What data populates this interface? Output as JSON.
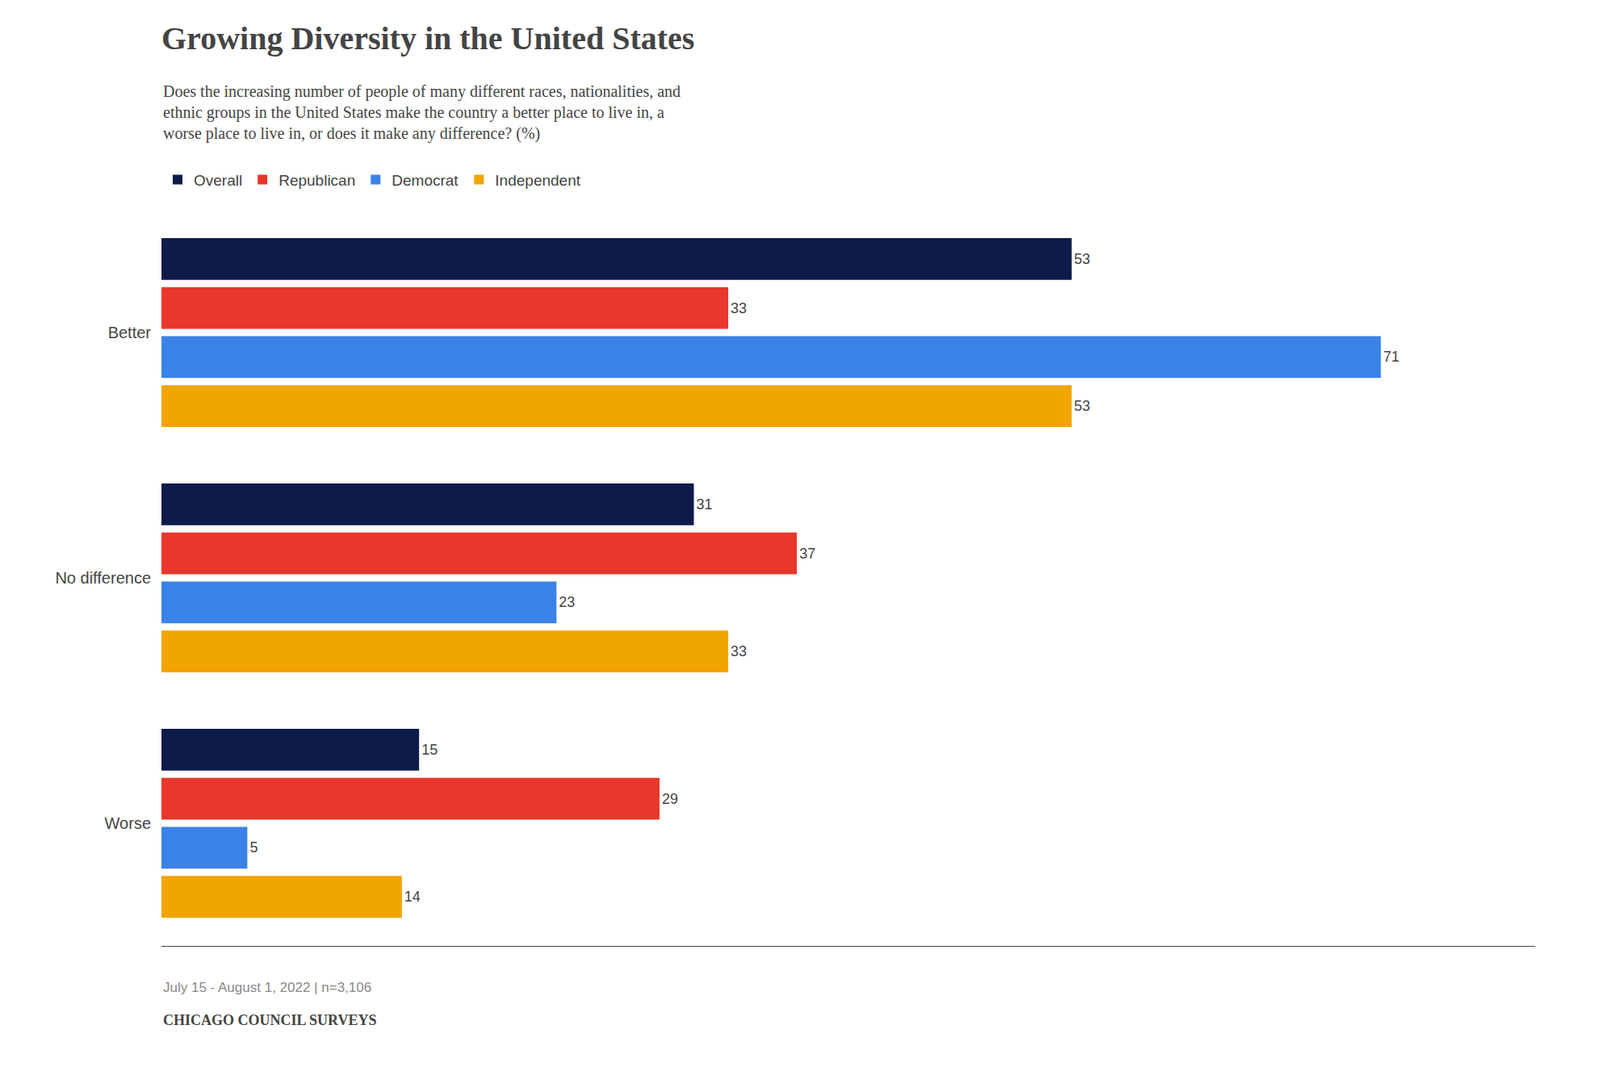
{
  "chart_data": {
    "type": "bar",
    "orientation": "horizontal",
    "title": "Growing Diversity in the United States",
    "subtitle": "Does the increasing number of people of many different races, nationalities, and\nethnic groups in the United States make the country a better place to live in, a\nworse place to live in, or does it make any difference? (%)",
    "categories": [
      "Better",
      "No difference",
      "Worse"
    ],
    "series": [
      {
        "name": "Overall",
        "color": "#0d1b4b",
        "values": [
          53,
          31,
          15
        ]
      },
      {
        "name": "Republican",
        "color": "#e8372b",
        "values": [
          33,
          37,
          29
        ]
      },
      {
        "name": "Democrat",
        "color": "#3b82e8",
        "values": [
          71,
          23,
          5
        ]
      },
      {
        "name": "Independent",
        "color": "#f0a500",
        "values": [
          53,
          33,
          14
        ]
      }
    ],
    "xlim": [
      0,
      80
    ],
    "xticks": [],
    "tick_labels": "y",
    "grid": false,
    "legend": "top left",
    "data_labels": true,
    "annotations": [
      "July 15 - August 1, 2022 | n=3,106",
      "CHICAGO COUNCIL SURVEYS"
    ]
  }
}
